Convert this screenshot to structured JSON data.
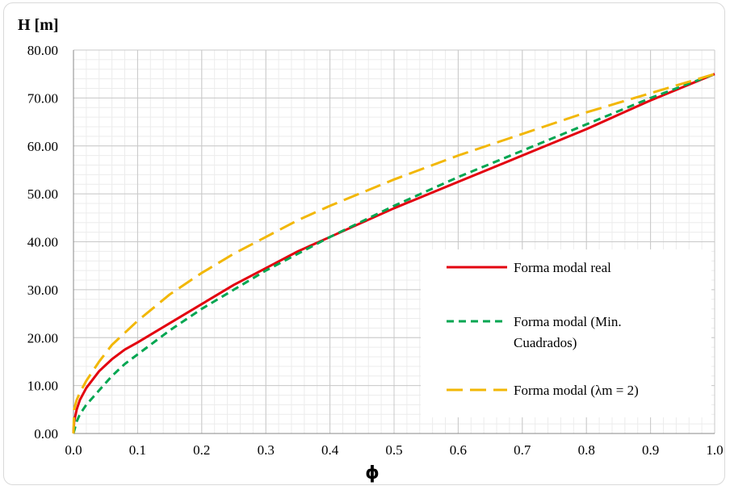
{
  "chart_data": {
    "type": "line",
    "xlabel": "ϕ",
    "ylabel": "H [m]",
    "xlim": [
      0,
      1
    ],
    "ylim": [
      0,
      80
    ],
    "x_ticks": [
      "0.0",
      "0.1",
      "0.2",
      "0.3",
      "0.4",
      "0.5",
      "0.6",
      "0.7",
      "0.8",
      "0.9",
      "1.0"
    ],
    "y_ticks": [
      "0.00",
      "10.00",
      "20.00",
      "30.00",
      "40.00",
      "50.00",
      "60.00",
      "70.00",
      "80.00"
    ],
    "grid": true,
    "legend_position": "bottom-right",
    "series": [
      {
        "name": "Forma modal real",
        "color": "#e3000f",
        "style": "solid",
        "x": [
          0,
          0.001,
          0.005,
          0.01,
          0.02,
          0.04,
          0.06,
          0.08,
          0.1,
          0.15,
          0.2,
          0.25,
          0.3,
          0.35,
          0.4,
          0.5,
          0.6,
          0.7,
          0.8,
          0.9,
          1.0
        ],
        "y": [
          0,
          2.5,
          5.0,
          7.0,
          9.5,
          13.0,
          15.5,
          17.5,
          19.0,
          23.0,
          27.0,
          31.0,
          34.5,
          38.0,
          41.0,
          47.0,
          52.5,
          58.0,
          63.5,
          69.5,
          75.0
        ]
      },
      {
        "name": "Forma modal (Min. Cuadrados)",
        "color": "#00a651",
        "style": "dashed",
        "x": [
          0,
          0.005,
          0.01,
          0.02,
          0.04,
          0.06,
          0.08,
          0.1,
          0.15,
          0.2,
          0.25,
          0.3,
          0.35,
          0.4,
          0.5,
          0.6,
          0.7,
          0.8,
          0.9,
          1.0
        ],
        "y": [
          0,
          2.5,
          4.0,
          6.0,
          9.0,
          12.0,
          14.5,
          16.5,
          21.5,
          26.0,
          30.0,
          34.0,
          37.5,
          41.0,
          47.5,
          53.5,
          59.0,
          64.5,
          70.0,
          75.0
        ]
      },
      {
        "name": "Forma modal (λm = 2)",
        "color": "#f2b705",
        "style": "longdash",
        "x": [
          0,
          0.001,
          0.005,
          0.01,
          0.02,
          0.04,
          0.06,
          0.08,
          0.1,
          0.15,
          0.2,
          0.25,
          0.3,
          0.35,
          0.4,
          0.5,
          0.6,
          0.7,
          0.8,
          0.9,
          1.0
        ],
        "y": [
          0,
          5.0,
          7.0,
          8.5,
          11.0,
          15.0,
          18.5,
          21.0,
          23.5,
          29.0,
          33.5,
          37.5,
          41.0,
          44.5,
          47.5,
          53.0,
          58.0,
          62.5,
          67.0,
          71.0,
          75.0
        ]
      }
    ],
    "legend": {
      "entries": [
        {
          "lines": [
            "Forma modal real"
          ]
        },
        {
          "lines": [
            "Forma modal (Min.",
            "Cuadrados)"
          ]
        },
        {
          "lines": [
            "Forma modal (λm = 2)"
          ]
        }
      ]
    }
  }
}
